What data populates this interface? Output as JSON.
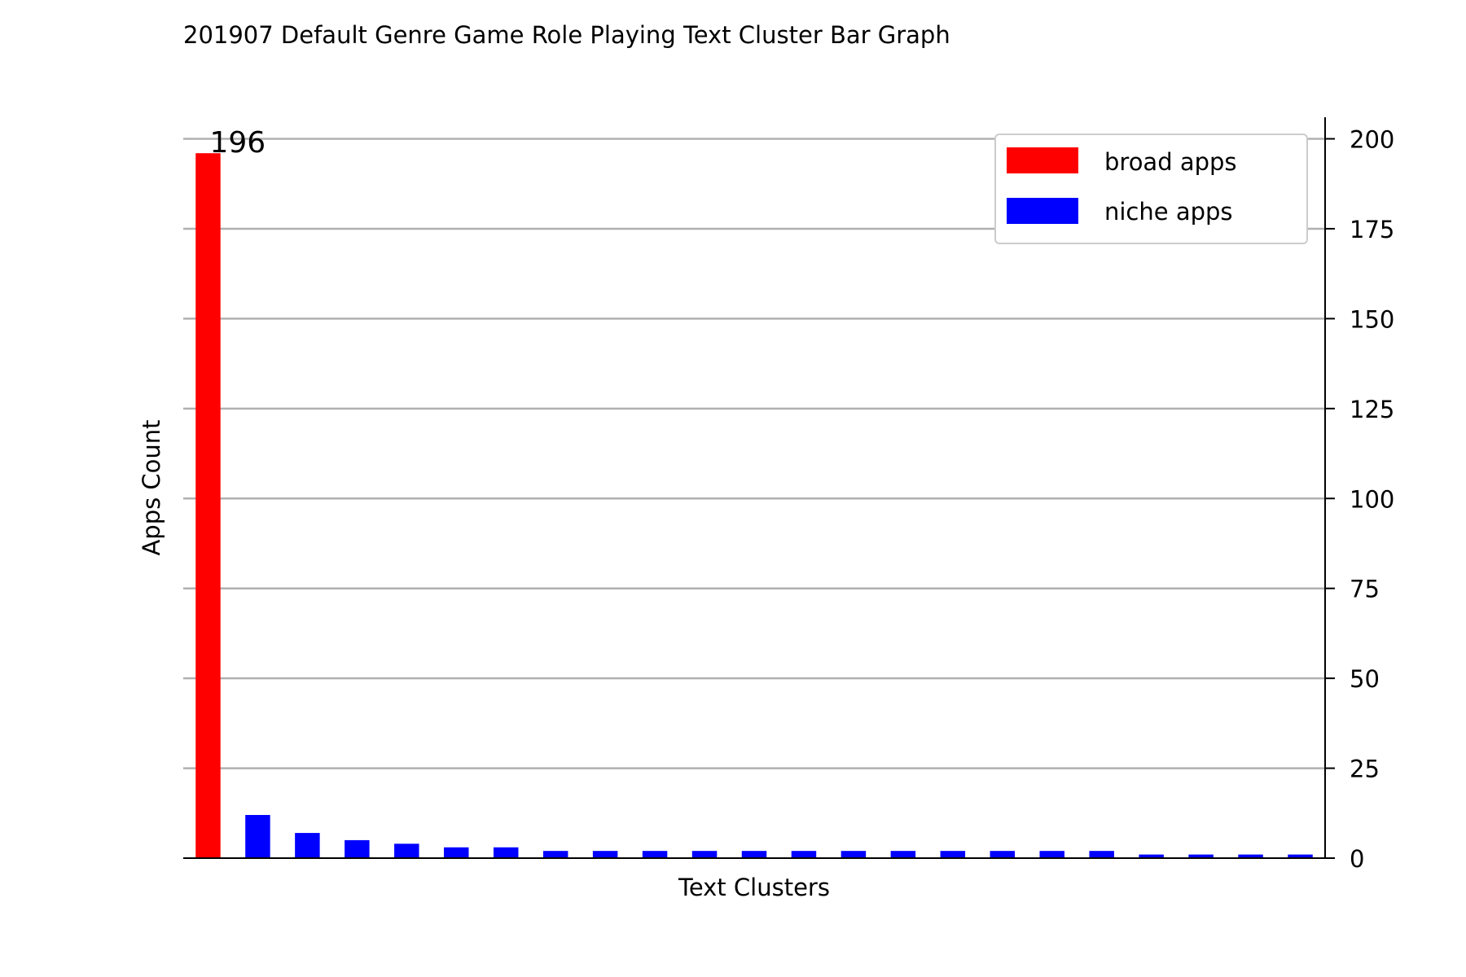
{
  "chart_data": {
    "type": "bar",
    "title": "201907 Default Genre Game Role Playing Text Cluster Bar Graph",
    "xlabel": "Text Clusters",
    "ylabel": "Apps Count",
    "ylim": [
      0,
      206
    ],
    "yticks": [
      0,
      25,
      50,
      75,
      100,
      125,
      150,
      175,
      200
    ],
    "y_axis_side": "right",
    "grid": "horizontal",
    "legend_position": "top-right",
    "series": [
      {
        "name": "broad apps",
        "color": "#ff0000"
      },
      {
        "name": "niche apps",
        "color": "#0000ff"
      }
    ],
    "bars": [
      {
        "value": 196,
        "series": "broad apps",
        "label": "196"
      },
      {
        "value": 12,
        "series": "niche apps"
      },
      {
        "value": 7,
        "series": "niche apps"
      },
      {
        "value": 5,
        "series": "niche apps"
      },
      {
        "value": 4,
        "series": "niche apps"
      },
      {
        "value": 3,
        "series": "niche apps"
      },
      {
        "value": 3,
        "series": "niche apps"
      },
      {
        "value": 2,
        "series": "niche apps"
      },
      {
        "value": 2,
        "series": "niche apps"
      },
      {
        "value": 2,
        "series": "niche apps"
      },
      {
        "value": 2,
        "series": "niche apps"
      },
      {
        "value": 2,
        "series": "niche apps"
      },
      {
        "value": 2,
        "series": "niche apps"
      },
      {
        "value": 2,
        "series": "niche apps"
      },
      {
        "value": 2,
        "series": "niche apps"
      },
      {
        "value": 2,
        "series": "niche apps"
      },
      {
        "value": 2,
        "series": "niche apps"
      },
      {
        "value": 2,
        "series": "niche apps"
      },
      {
        "value": 2,
        "series": "niche apps"
      },
      {
        "value": 1,
        "series": "niche apps"
      },
      {
        "value": 1,
        "series": "niche apps"
      },
      {
        "value": 1,
        "series": "niche apps"
      },
      {
        "value": 1,
        "series": "niche apps"
      }
    ]
  }
}
